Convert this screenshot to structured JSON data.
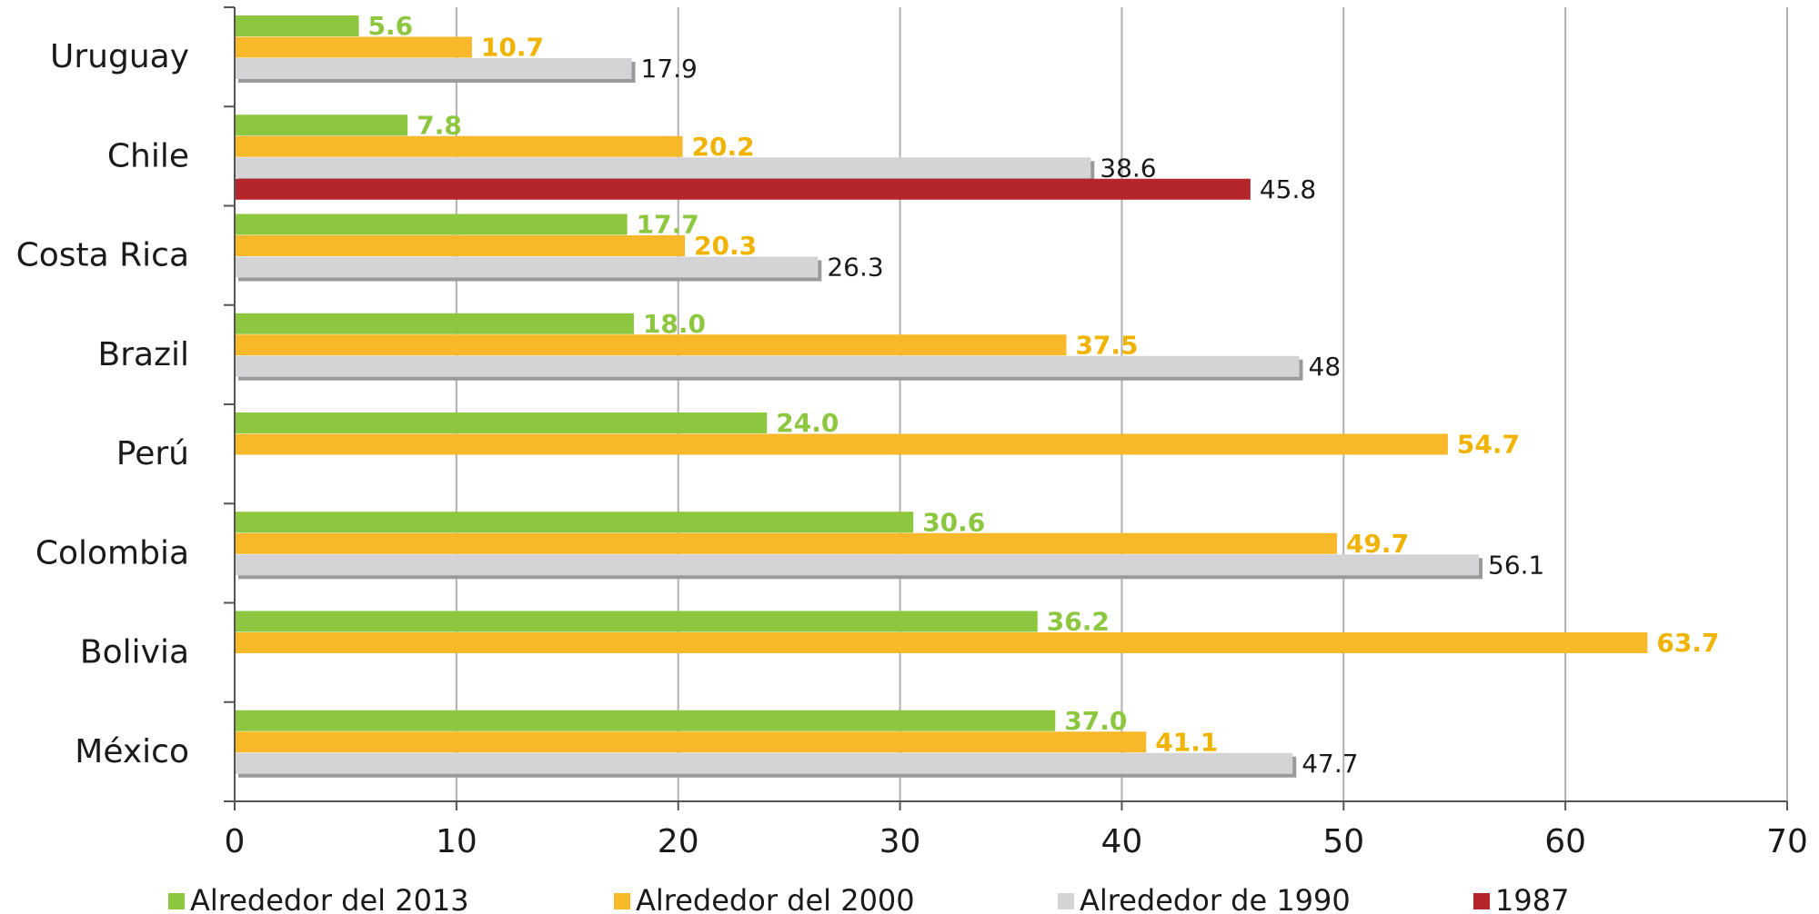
{
  "chart_data": {
    "type": "bar",
    "orientation": "horizontal",
    "title": "",
    "xlabel": "",
    "ylabel": "",
    "categories": [
      "Uruguay",
      "Chile",
      "Costa Rica",
      "Brazil",
      "Perú",
      "Colombia",
      "Bolivia",
      "México"
    ],
    "xlim": [
      0,
      70
    ],
    "xticks": [
      "0",
      "10",
      "20",
      "30",
      "40",
      "50",
      "60",
      "70"
    ],
    "grid": true,
    "legend_position": "bottom",
    "series": [
      {
        "name": "Alrededor del 2013",
        "color": "#8dc63f",
        "label_color": "#8dc63f",
        "values": [
          5.6,
          7.8,
          17.7,
          18.0,
          24.0,
          30.6,
          36.2,
          37.0
        ],
        "labels": [
          "5.6",
          "7.8",
          "17.7",
          "18.0",
          "24.0",
          "30.6",
          "36.2",
          "37.0"
        ]
      },
      {
        "name": "Alrededor del 2000",
        "color": "#f7b82a",
        "label_color": "#f0b400",
        "values": [
          10.7,
          20.2,
          20.3,
          37.5,
          54.7,
          49.7,
          63.7,
          41.1
        ],
        "labels": [
          "10.7",
          "20.2",
          "20.3",
          "37.5",
          "54.7",
          "49.7",
          "63.7",
          "41.1"
        ]
      },
      {
        "name": "Alrededor de 1990",
        "color": "#d4d4d6",
        "label_color": "#1a1a1a",
        "values": [
          17.9,
          38.6,
          26.3,
          48,
          null,
          56.1,
          null,
          47.7
        ],
        "labels": [
          "17.9",
          "38.6",
          "26.3",
          "48",
          null,
          "56.1",
          null,
          "47.7"
        ]
      },
      {
        "name": "1987",
        "color": "#b5262b",
        "label_color": "#1a1a1a",
        "values": [
          null,
          45.8,
          null,
          null,
          null,
          null,
          null,
          null
        ],
        "labels": [
          null,
          "45.8",
          null,
          null,
          null,
          null,
          null,
          null
        ]
      }
    ]
  }
}
